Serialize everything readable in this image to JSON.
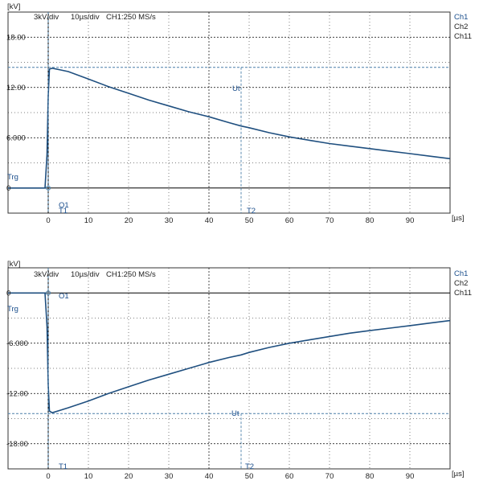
{
  "scopes": [
    {
      "unit_label": "[kV]",
      "settings": {
        "volts_per_div": "3kV/div",
        "time_per_div": "10µs/div",
        "sample_rate": "CH1:250 MS/s"
      },
      "channels": [
        {
          "label": "Ch1",
          "color": "#1a4e8c"
        },
        {
          "label": "Ch2",
          "color": "#222222"
        },
        {
          "label": "Ch11",
          "color": "#222222"
        }
      ],
      "y_tick_labels": [
        "18.00",
        "12.00",
        "6.000",
        "0"
      ],
      "x_tick_labels": [
        "0",
        "10",
        "20",
        "30",
        "40",
        "50",
        "60",
        "70",
        "80",
        "90"
      ],
      "x_unit": "[µs]",
      "markers": {
        "trigger": "Trg",
        "origin": "O1",
        "t1": "T1",
        "t2": "T2",
        "ut": "Ut"
      }
    },
    {
      "unit_label": "[kV]",
      "settings": {
        "volts_per_div": "3kV/div",
        "time_per_div": "10µs/div",
        "sample_rate": "CH1:250 MS/s"
      },
      "channels": [
        {
          "label": "Ch1",
          "color": "#1a4e8c"
        },
        {
          "label": "Ch2",
          "color": "#222222"
        },
        {
          "label": "Ch11",
          "color": "#222222"
        }
      ],
      "y_tick_labels": [
        "0",
        "-6.000",
        "-12.00",
        "-18.00"
      ],
      "x_tick_labels": [
        "0",
        "10",
        "20",
        "30",
        "40",
        "50",
        "60",
        "70",
        "80",
        "90"
      ],
      "x_unit": "[µs]",
      "markers": {
        "trigger": "Trg",
        "origin": "O1",
        "t1": "T1",
        "t2": "T2",
        "ut": "Ut"
      }
    }
  ],
  "chart_data": [
    {
      "type": "line",
      "xlabel": "[µs]",
      "ylabel": "[kV]",
      "xlim": [
        -10,
        100
      ],
      "ylim": [
        -3,
        21
      ],
      "series": [
        {
          "name": "Ch1",
          "x": [
            -10,
            -0.8,
            -0.3,
            0,
            0.3,
            1,
            3,
            5,
            10,
            15,
            20,
            25,
            30,
            35,
            40,
            45,
            48,
            50,
            55,
            60,
            65,
            70,
            75,
            80,
            85,
            90,
            95,
            100
          ],
          "y": [
            0,
            0,
            4.0,
            11.0,
            14.2,
            14.3,
            14.1,
            13.9,
            13.0,
            12.1,
            11.3,
            10.5,
            9.8,
            9.1,
            8.5,
            7.8,
            7.4,
            7.2,
            6.6,
            6.1,
            5.7,
            5.3,
            5.0,
            4.7,
            4.4,
            4.1,
            3.8,
            3.5
          ]
        }
      ],
      "cursors": {
        "t1": 0,
        "t2": 48,
        "ut": 14.4
      }
    },
    {
      "type": "line",
      "xlabel": "[µs]",
      "ylabel": "[kV]",
      "xlim": [
        -10,
        100
      ],
      "ylim": [
        -21,
        3
      ],
      "series": [
        {
          "name": "Ch1",
          "x": [
            -10,
            -0.8,
            -0.3,
            0,
            0.3,
            1,
            3,
            5,
            10,
            15,
            20,
            25,
            30,
            35,
            40,
            45,
            48,
            50,
            55,
            60,
            65,
            70,
            75,
            80,
            85,
            90,
            95,
            100
          ],
          "y": [
            0,
            0,
            -4.0,
            -11.0,
            -14.1,
            -14.3,
            -14.0,
            -13.7,
            -12.9,
            -12.0,
            -11.2,
            -10.4,
            -9.7,
            -9.0,
            -8.3,
            -7.7,
            -7.4,
            -7.1,
            -6.5,
            -6.0,
            -5.6,
            -5.2,
            -4.8,
            -4.5,
            -4.2,
            -3.9,
            -3.6,
            -3.3
          ]
        }
      ],
      "cursors": {
        "t1": 0,
        "t2": 48,
        "ut": -14.4
      }
    }
  ]
}
